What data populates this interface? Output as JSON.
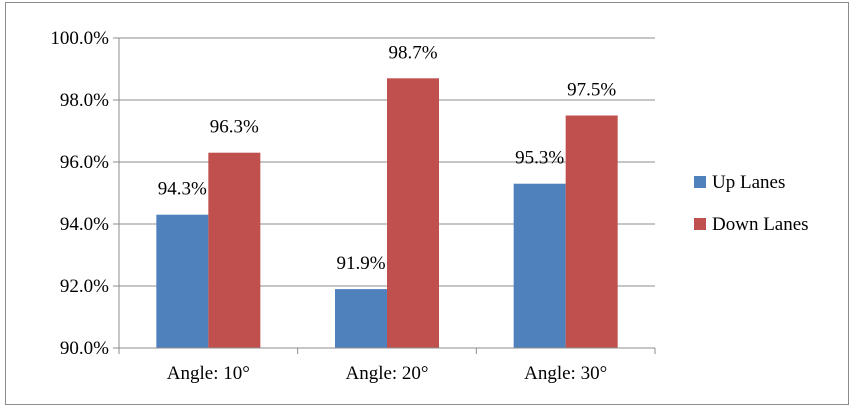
{
  "chart_data": {
    "type": "bar",
    "categories": [
      "Angle: 10°",
      "Angle: 20°",
      "Angle: 30°"
    ],
    "series": [
      {
        "name": "Up Lanes",
        "values": [
          94.3,
          91.9,
          95.3
        ],
        "color": "#4f81bd"
      },
      {
        "name": "Down Lanes",
        "values": [
          96.3,
          98.7,
          97.5
        ],
        "color": "#c0504d"
      }
    ],
    "data_labels": [
      [
        "94.3%",
        "91.9%",
        "95.3%"
      ],
      [
        "96.3%",
        "98.7%",
        "97.5%"
      ]
    ],
    "ylim": [
      90,
      100
    ],
    "yticks": [
      90,
      92,
      94,
      96,
      98,
      100
    ],
    "ytick_labels": [
      "90.0%",
      "92.0%",
      "94.0%",
      "96.0%",
      "98.0%",
      "100.0%"
    ],
    "grid": true,
    "legend_position": "right",
    "title": "",
    "xlabel": "",
    "ylabel": ""
  }
}
